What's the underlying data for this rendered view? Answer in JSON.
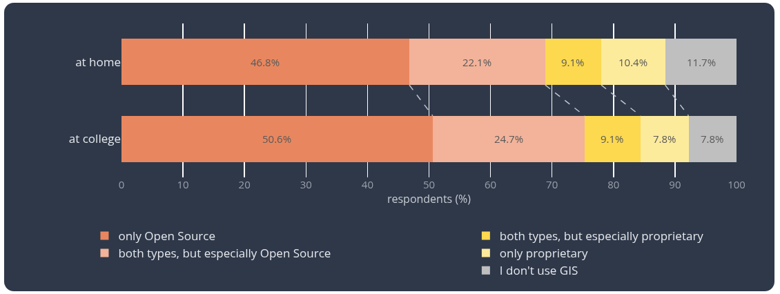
{
  "chart_data": {
    "type": "bar",
    "orientation": "horizontal",
    "stacked": true,
    "categories": [
      "at home",
      "at college"
    ],
    "xlabel": "respondents (%)",
    "xlim": [
      0,
      100
    ],
    "xticks": [
      0,
      10,
      20,
      30,
      40,
      50,
      60,
      70,
      80,
      90,
      100
    ],
    "grid": "x",
    "legend": "bottom",
    "series": [
      {
        "name": "only Open Source",
        "color": "#e8875f",
        "values": [
          46.8,
          50.6
        ],
        "value_labels": [
          "46.8%",
          "50.6%"
        ]
      },
      {
        "name": "both types, but especially Open Source",
        "color": "#f2b39a",
        "values": [
          22.1,
          24.7
        ],
        "value_labels": [
          "22.1%",
          "24.7%"
        ]
      },
      {
        "name": "both types, but especially proprietary",
        "color": "#fcd94f",
        "values": [
          9.1,
          9.1
        ],
        "value_labels": [
          "9.1%",
          "9.1%"
        ]
      },
      {
        "name": "only proprietary",
        "color": "#fdeb9c",
        "values": [
          10.4,
          7.8
        ],
        "value_labels": [
          "10.4%",
          "7.8%"
        ]
      },
      {
        "name": "I don't use GIS",
        "color": "#bfbfbf",
        "values": [
          11.7,
          7.8
        ],
        "value_labels": [
          "11.7%",
          "7.8%"
        ]
      }
    ]
  }
}
